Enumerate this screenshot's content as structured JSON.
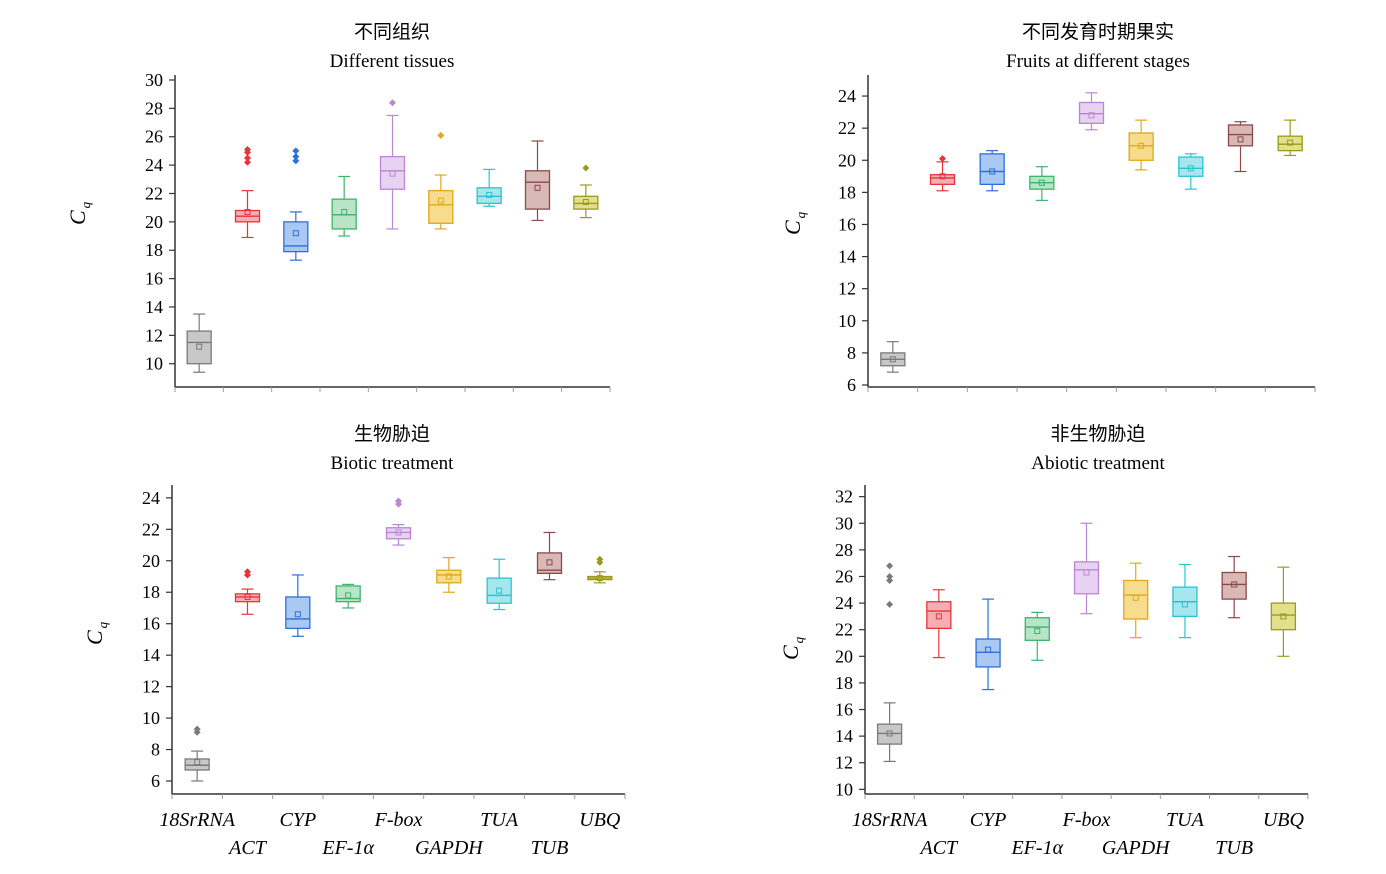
{
  "chart_data": [
    {
      "type": "box",
      "title": "不同组织",
      "subtitle": "Different tissues",
      "ylabel": "C",
      "ylabel_sub": "q",
      "ylim": [
        8.5,
        30
      ],
      "yticks": [
        10,
        12,
        14,
        16,
        18,
        20,
        22,
        24,
        26,
        28,
        30
      ],
      "x_tick_labels_visible": false,
      "categories": [
        "18SrRNA",
        "ACT",
        "CYP",
        "EF-1α",
        "F-box",
        "GAPDH",
        "TUA",
        "TUB",
        "UBQ"
      ],
      "colors": [
        "#7a7a7a",
        "#e8333c",
        "#2f6fd6",
        "#3cb56a",
        "#b987d4",
        "#e0a81a",
        "#2cc3cf",
        "#8b4a4a",
        "#9c9a1e"
      ],
      "fills": [
        "#c8c8c8",
        "#f6aeb4",
        "#a9c9f2",
        "#b9e4c8",
        "#e8d2f1",
        "#f6dc8c",
        "#a6e6ec",
        "#d9b9b6",
        "#e2e08c"
      ],
      "boxes": [
        {
          "min": 9.4,
          "q1": 10.0,
          "median": 11.5,
          "q3": 12.3,
          "max": 13.5,
          "mean": 11.2,
          "outliers": []
        },
        {
          "min": 18.9,
          "q1": 20.0,
          "median": 20.4,
          "q3": 20.8,
          "max": 22.2,
          "mean": 20.7,
          "outliers": [
            24.2,
            24.5,
            24.9,
            25.1
          ]
        },
        {
          "min": 17.3,
          "q1": 17.9,
          "median": 18.3,
          "q3": 20.0,
          "max": 20.7,
          "mean": 19.2,
          "outliers": [
            24.3,
            24.6,
            25.0
          ]
        },
        {
          "min": 19.0,
          "q1": 19.5,
          "median": 20.5,
          "q3": 21.6,
          "max": 23.2,
          "mean": 20.7,
          "outliers": []
        },
        {
          "min": 19.5,
          "q1": 22.3,
          "median": 23.6,
          "q3": 24.6,
          "max": 27.5,
          "mean": 23.4,
          "outliers": [
            28.4
          ]
        },
        {
          "min": 19.5,
          "q1": 19.9,
          "median": 21.2,
          "q3": 22.2,
          "max": 23.3,
          "mean": 21.5,
          "outliers": [
            26.1
          ]
        },
        {
          "min": 21.1,
          "q1": 21.3,
          "median": 21.8,
          "q3": 22.4,
          "max": 23.7,
          "mean": 21.9,
          "outliers": []
        },
        {
          "min": 20.1,
          "q1": 20.9,
          "median": 22.8,
          "q3": 23.6,
          "max": 25.7,
          "mean": 22.4,
          "outliers": []
        },
        {
          "min": 20.3,
          "q1": 20.9,
          "median": 21.3,
          "q3": 21.8,
          "max": 22.6,
          "mean": 21.4,
          "outliers": [
            23.8
          ]
        }
      ]
    },
    {
      "type": "box",
      "title": "不同发育时期果实",
      "subtitle": "Fruits at different stages",
      "ylabel": "C",
      "ylabel_sub": "q",
      "ylim": [
        6,
        25
      ],
      "yticks": [
        6,
        8,
        10,
        12,
        14,
        16,
        18,
        20,
        22,
        24
      ],
      "x_tick_labels_visible": false,
      "categories": [
        "18SrRNA",
        "ACT",
        "CYP",
        "EF-1α",
        "F-box",
        "GAPDH",
        "TUA",
        "TUB",
        "UBQ"
      ],
      "colors": [
        "#7a7a7a",
        "#e8333c",
        "#2f6fd6",
        "#3cb56a",
        "#b987d4",
        "#e0a81a",
        "#2cc3cf",
        "#8b4a4a",
        "#9c9a1e"
      ],
      "fills": [
        "#c8c8c8",
        "#f6aeb4",
        "#a9c9f2",
        "#b9e4c8",
        "#e8d2f1",
        "#f6dc8c",
        "#a6e6ec",
        "#d9b9b6",
        "#e2e08c"
      ],
      "boxes": [
        {
          "min": 6.8,
          "q1": 7.2,
          "median": 7.6,
          "q3": 8.0,
          "max": 8.7,
          "mean": 7.6,
          "outliers": []
        },
        {
          "min": 18.1,
          "q1": 18.5,
          "median": 18.9,
          "q3": 19.1,
          "max": 19.9,
          "mean": 19.0,
          "outliers": [
            20.1
          ]
        },
        {
          "min": 18.1,
          "q1": 18.5,
          "median": 19.3,
          "q3": 20.4,
          "max": 20.6,
          "mean": 19.3,
          "outliers": []
        },
        {
          "min": 17.5,
          "q1": 18.2,
          "median": 18.6,
          "q3": 19.0,
          "max": 19.6,
          "mean": 18.6,
          "outliers": []
        },
        {
          "min": 21.9,
          "q1": 22.3,
          "median": 22.9,
          "q3": 23.6,
          "max": 24.2,
          "mean": 22.8,
          "outliers": []
        },
        {
          "min": 19.4,
          "q1": 20.0,
          "median": 20.9,
          "q3": 21.7,
          "max": 22.5,
          "mean": 20.9,
          "outliers": []
        },
        {
          "min": 18.2,
          "q1": 19.0,
          "median": 19.5,
          "q3": 20.2,
          "max": 20.4,
          "mean": 19.5,
          "outliers": []
        },
        {
          "min": 19.3,
          "q1": 20.9,
          "median": 21.6,
          "q3": 22.2,
          "max": 22.4,
          "mean": 21.3,
          "outliers": []
        },
        {
          "min": 20.3,
          "q1": 20.6,
          "median": 21.0,
          "q3": 21.5,
          "max": 22.5,
          "mean": 21.1,
          "outliers": []
        }
      ]
    },
    {
      "type": "box",
      "title": "生物胁迫",
      "subtitle": "Biotic treatment",
      "ylabel": "C",
      "ylabel_sub": "q",
      "ylim": [
        5.3,
        24.5
      ],
      "yticks": [
        6,
        8,
        10,
        12,
        14,
        16,
        18,
        20,
        22,
        24
      ],
      "x_tick_labels_visible": true,
      "categories": [
        "18SrRNA",
        "ACT",
        "CYP",
        "EF-1α",
        "F-box",
        "GAPDH",
        "TUA",
        "TUB",
        "UBQ"
      ],
      "colors": [
        "#7a7a7a",
        "#e8333c",
        "#2f6fd6",
        "#3cb56a",
        "#b987d4",
        "#e0a81a",
        "#2cc3cf",
        "#8b4a4a",
        "#9c9a1e"
      ],
      "fills": [
        "#c8c8c8",
        "#f6aeb4",
        "#a9c9f2",
        "#b9e4c8",
        "#e8d2f1",
        "#f6dc8c",
        "#a6e6ec",
        "#d9b9b6",
        "#e2e08c"
      ],
      "boxes": [
        {
          "min": 6.0,
          "q1": 6.7,
          "median": 7.0,
          "q3": 7.4,
          "max": 7.9,
          "mean": 7.2,
          "outliers": [
            9.1,
            9.3
          ]
        },
        {
          "min": 16.6,
          "q1": 17.4,
          "median": 17.7,
          "q3": 17.9,
          "max": 18.2,
          "mean": 17.7,
          "outliers": [
            19.1,
            19.3
          ]
        },
        {
          "min": 15.2,
          "q1": 15.7,
          "median": 16.3,
          "q3": 17.7,
          "max": 19.1,
          "mean": 16.6,
          "outliers": []
        },
        {
          "min": 17.0,
          "q1": 17.4,
          "median": 17.6,
          "q3": 18.4,
          "max": 18.5,
          "mean": 17.8,
          "outliers": []
        },
        {
          "min": 21.0,
          "q1": 21.4,
          "median": 21.8,
          "q3": 22.1,
          "max": 22.3,
          "mean": 21.8,
          "outliers": [
            23.6,
            23.8
          ]
        },
        {
          "min": 18.0,
          "q1": 18.6,
          "median": 19.1,
          "q3": 19.4,
          "max": 20.2,
          "mean": 19.0,
          "outliers": []
        },
        {
          "min": 16.9,
          "q1": 17.3,
          "median": 17.8,
          "q3": 18.9,
          "max": 20.1,
          "mean": 18.1,
          "outliers": []
        },
        {
          "min": 18.8,
          "q1": 19.2,
          "median": 19.4,
          "q3": 20.5,
          "max": 21.8,
          "mean": 19.9,
          "outliers": []
        },
        {
          "min": 18.6,
          "q1": 18.8,
          "median": 18.9,
          "q3": 19.0,
          "max": 19.3,
          "mean": 18.9,
          "outliers": [
            19.9,
            20.1
          ]
        }
      ]
    },
    {
      "type": "box",
      "title": "非生物胁迫",
      "subtitle": "Abiotic treatment",
      "ylabel": "C",
      "ylabel_sub": "q",
      "ylim": [
        9.8,
        32.5
      ],
      "yticks": [
        10,
        12,
        14,
        16,
        18,
        20,
        22,
        24,
        26,
        28,
        30,
        32
      ],
      "x_tick_labels_visible": true,
      "categories": [
        "18SrRNA",
        "ACT",
        "CYP",
        "EF-1α",
        "F-box",
        "GAPDH",
        "TUA",
        "TUB",
        "UBQ"
      ],
      "colors": [
        "#7a7a7a",
        "#e8333c",
        "#2f6fd6",
        "#3cb56a",
        "#b987d4",
        "#e0a81a",
        "#2cc3cf",
        "#8b4a4a",
        "#9c9a1e"
      ],
      "fills": [
        "#c8c8c8",
        "#f6aeb4",
        "#a9c9f2",
        "#b9e4c8",
        "#e8d2f1",
        "#f6dc8c",
        "#a6e6ec",
        "#d9b9b6",
        "#e2e08c"
      ],
      "boxes": [
        {
          "min": 12.1,
          "q1": 13.4,
          "median": 14.2,
          "q3": 14.9,
          "max": 16.5,
          "mean": 14.2,
          "outliers": [
            23.9,
            25.7,
            26.0,
            26.8
          ]
        },
        {
          "min": 19.9,
          "q1": 22.1,
          "median": 23.4,
          "q3": 24.1,
          "max": 25.0,
          "mean": 23.0,
          "outliers": []
        },
        {
          "min": 17.5,
          "q1": 19.2,
          "median": 20.3,
          "q3": 21.3,
          "max": 24.3,
          "mean": 20.5,
          "outliers": []
        },
        {
          "min": 19.7,
          "q1": 21.2,
          "median": 22.2,
          "q3": 22.9,
          "max": 23.3,
          "mean": 21.9,
          "outliers": []
        },
        {
          "min": 23.2,
          "q1": 24.7,
          "median": 26.5,
          "q3": 27.1,
          "max": 30.0,
          "mean": 26.3,
          "outliers": []
        },
        {
          "min": 21.4,
          "q1": 22.8,
          "median": 24.6,
          "q3": 25.7,
          "max": 27.0,
          "mean": 24.4,
          "outliers": []
        },
        {
          "min": 21.4,
          "q1": 23.0,
          "median": 24.1,
          "q3": 25.2,
          "max": 26.9,
          "mean": 23.9,
          "outliers": []
        },
        {
          "min": 22.9,
          "q1": 24.3,
          "median": 25.4,
          "q3": 26.3,
          "max": 27.5,
          "mean": 25.4,
          "outliers": []
        },
        {
          "min": 20.0,
          "q1": 22.0,
          "median": 23.1,
          "q3": 24.0,
          "max": 26.7,
          "mean": 23.0,
          "outliers": []
        }
      ]
    }
  ]
}
